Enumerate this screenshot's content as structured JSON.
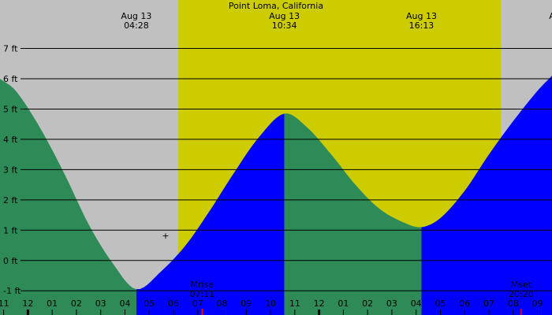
{
  "colors": {
    "night": "#c0c0c0",
    "day": "#cccc00",
    "falling": "#2e8b57",
    "rising": "#0000ff",
    "gridline": "#000000",
    "moon_tick": "#ff0000"
  },
  "chart_data": {
    "type": "area",
    "title": "Point Loma, California",
    "ylabel": "",
    "xlabel": "",
    "y_unit": "ft",
    "ylim": [
      -1.8,
      8.6
    ],
    "yticks": [
      -1,
      0,
      1,
      2,
      3,
      4,
      5,
      6,
      7
    ],
    "ytick_labels": [
      "-1 ft",
      "0 ft",
      "1 ft",
      "2 ft",
      "3 ft",
      "4 ft",
      "5 ft",
      "6 ft",
      "7 ft"
    ],
    "hour_labels": [
      "11",
      "12",
      "01",
      "02",
      "03",
      "04",
      "05",
      "06",
      "07",
      "08",
      "09",
      "10",
      "11",
      "12",
      "01",
      "02",
      "03",
      "04",
      "05",
      "06",
      "07",
      "08",
      "09"
    ],
    "x_range_hours": [
      -1.15,
      21.6
    ],
    "daylight_hours": [
      6.2,
      19.5
    ],
    "extremes": [
      {
        "date": "Aug 13",
        "time": "04:28",
        "hour": 4.47,
        "height": -0.95,
        "kind": "low"
      },
      {
        "date": "Aug 13",
        "time": "10:34",
        "hour": 10.57,
        "height": 4.85,
        "kind": "high"
      },
      {
        "date": "Aug 13",
        "time": "16:13",
        "hour": 16.22,
        "height": 1.1,
        "kind": "low"
      },
      {
        "date": "A",
        "time": "",
        "hour": 21.6,
        "height": 6.1,
        "kind": "high"
      }
    ],
    "series": [
      {
        "x_hours": [
          -1.15,
          -0.5,
          0.5,
          1.5,
          2.5,
          3.5,
          4.47,
          5.5,
          6.5,
          7.5,
          8.5,
          9.5,
          10.57,
          11.5,
          12.5,
          13.5,
          14.5,
          15.5,
          16.22,
          17.0,
          18.0,
          19.0,
          20.0,
          21.0,
          21.6
        ],
        "y": [
          6.0,
          5.6,
          4.38,
          2.87,
          1.2,
          -0.1,
          -0.95,
          -0.35,
          0.5,
          1.65,
          2.9,
          4.05,
          4.85,
          4.4,
          3.5,
          2.5,
          1.7,
          1.25,
          1.1,
          1.4,
          2.3,
          3.5,
          4.6,
          5.6,
          6.1
        ]
      }
    ],
    "moon_events": [
      {
        "label": "Mrise",
        "time": "07:11",
        "hour": 7.18
      },
      {
        "label": "Mset",
        "time": "20:20",
        "hour": 20.33
      }
    ],
    "annotations": [
      "+"
    ]
  }
}
